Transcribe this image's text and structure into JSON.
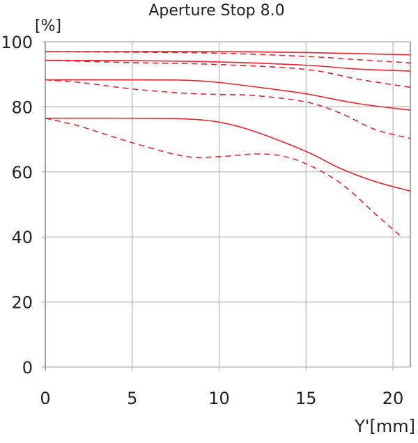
{
  "chart_data": {
    "type": "line",
    "title": "Aperture Stop 8.0",
    "ylabel": "[%]",
    "xlabel": "Y'[mm]",
    "xlim": [
      0,
      21
    ],
    "ylim": [
      0,
      100
    ],
    "xticks": [
      0,
      5,
      10,
      15,
      20
    ],
    "yticks": [
      0,
      20,
      40,
      60,
      80,
      100
    ],
    "grid": true,
    "colors": {
      "line": "#e8242f",
      "grid": "#b4b4b4",
      "axis": "#888888"
    },
    "series": [
      {
        "style": "solid",
        "points": [
          [
            0,
            97
          ],
          [
            5,
            97
          ],
          [
            10,
            97
          ],
          [
            15,
            96.7
          ],
          [
            21,
            96
          ]
        ]
      },
      {
        "style": "dashed",
        "points": [
          [
            0,
            97
          ],
          [
            5,
            96.8
          ],
          [
            10,
            96.5
          ],
          [
            15,
            95.5
          ],
          [
            18,
            94.5
          ],
          [
            21,
            93.5
          ]
        ]
      },
      {
        "style": "solid",
        "points": [
          [
            0,
            94.3
          ],
          [
            5,
            94.2
          ],
          [
            10,
            93.8
          ],
          [
            15,
            92.8
          ],
          [
            18,
            91.6
          ],
          [
            21,
            91
          ]
        ]
      },
      {
        "style": "dashed",
        "points": [
          [
            0,
            94.3
          ],
          [
            5,
            93.6
          ],
          [
            10,
            93
          ],
          [
            15,
            91.5
          ],
          [
            18,
            88.5
          ],
          [
            21,
            86
          ]
        ]
      },
      {
        "style": "solid",
        "points": [
          [
            0,
            88.3
          ],
          [
            5,
            88.3
          ],
          [
            8,
            88.2
          ],
          [
            10,
            87.5
          ],
          [
            13,
            85.5
          ],
          [
            15,
            84
          ],
          [
            18,
            81
          ],
          [
            21,
            79
          ]
        ]
      },
      {
        "style": "dashed",
        "points": [
          [
            0,
            88.3
          ],
          [
            2,
            87.5
          ],
          [
            5,
            85.5
          ],
          [
            8,
            84.2
          ],
          [
            10,
            83.8
          ],
          [
            12,
            83.5
          ],
          [
            15,
            81.5
          ],
          [
            17,
            78
          ],
          [
            19,
            73
          ],
          [
            21,
            70.3
          ]
        ]
      },
      {
        "style": "solid",
        "points": [
          [
            0,
            76.5
          ],
          [
            5,
            76.5
          ],
          [
            8,
            76.3
          ],
          [
            10,
            75.3
          ],
          [
            12,
            72.5
          ],
          [
            15,
            66.3
          ],
          [
            17,
            61
          ],
          [
            19,
            57
          ],
          [
            21,
            54.1
          ]
        ]
      },
      {
        "style": "dashed",
        "points": [
          [
            0,
            76.5
          ],
          [
            2,
            74
          ],
          [
            5,
            69
          ],
          [
            8,
            64.8
          ],
          [
            10,
            64.7
          ],
          [
            12,
            65.5
          ],
          [
            13.5,
            65
          ],
          [
            15,
            62.5
          ],
          [
            17,
            56.5
          ],
          [
            19,
            47
          ],
          [
            20.5,
            40
          ]
        ]
      }
    ]
  }
}
